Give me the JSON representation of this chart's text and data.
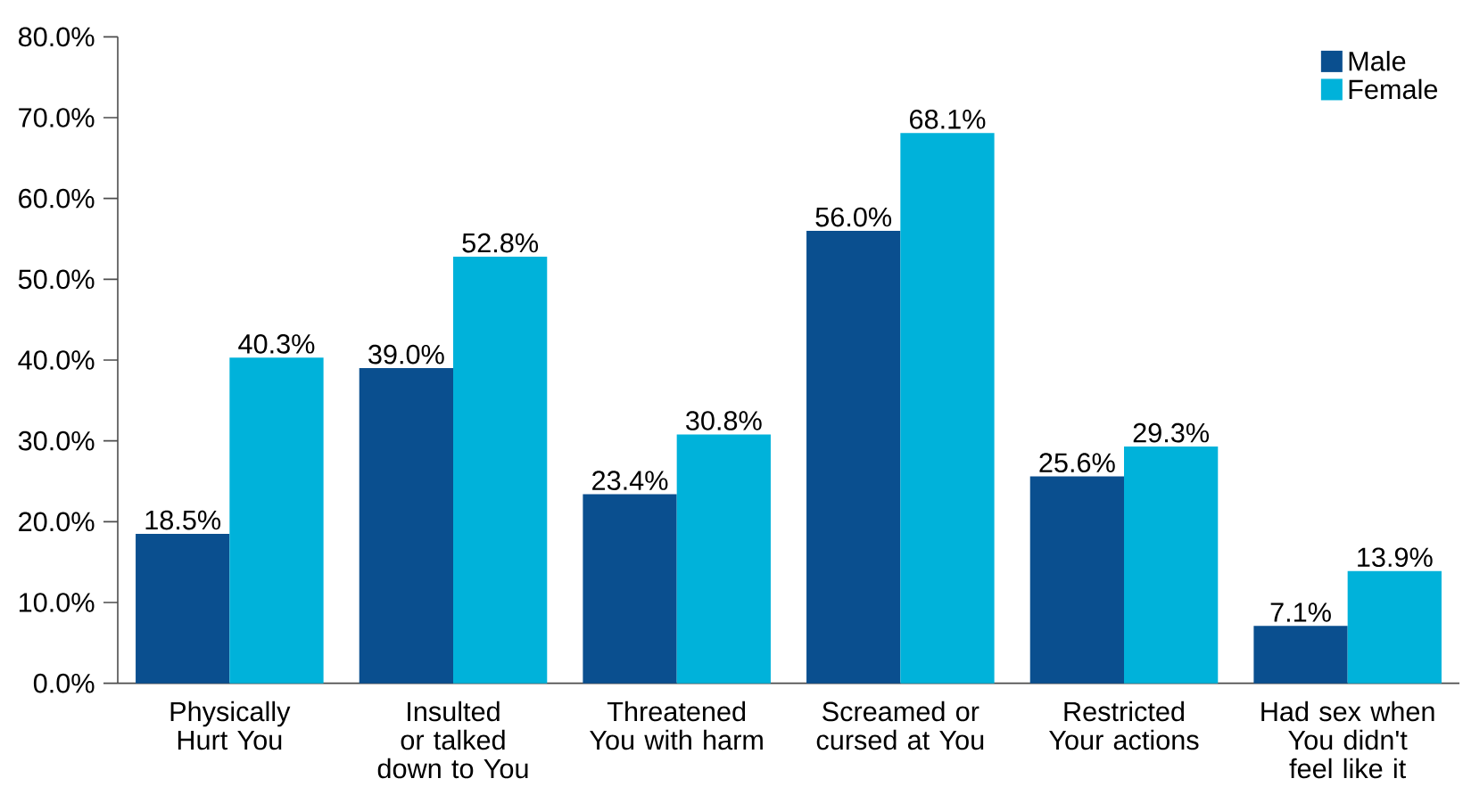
{
  "chart_data": {
    "type": "bar",
    "categories": [
      "Physically Hurt You",
      "Insulted or talked down to You",
      "Threatened You with harm",
      "Screamed or cursed at You",
      "Restricted Your actions",
      "Had sex when You didn't feel like it"
    ],
    "series": [
      {
        "name": "Male",
        "color": "#0a4f8f",
        "values": [
          18.5,
          39.0,
          23.4,
          56.0,
          25.6,
          7.1
        ],
        "value_labels": [
          "18.5%",
          "39.0%",
          "23.4%",
          "56.0%",
          "25.6%",
          "7.1%"
        ]
      },
      {
        "name": "Female",
        "color": "#00b2da",
        "values": [
          40.3,
          52.8,
          30.8,
          68.1,
          29.3,
          13.9
        ],
        "value_labels": [
          "40.3%",
          "52.8%",
          "30.8%",
          "68.1%",
          "29.3%",
          "13.9%"
        ]
      }
    ],
    "ylim": [
      0,
      80
    ],
    "yticks": [
      {
        "value": 0,
        "label": "0.0%"
      },
      {
        "value": 10,
        "label": "10.0%"
      },
      {
        "value": 20,
        "label": "20.0%"
      },
      {
        "value": 30,
        "label": "30.0%"
      },
      {
        "value": 40,
        "label": "40.0%"
      },
      {
        "value": 50,
        "label": "50.0%"
      },
      {
        "value": 60,
        "label": "60.0%"
      },
      {
        "value": 70,
        "label": "70.0%"
      },
      {
        "value": 80,
        "label": "80.0%"
      }
    ],
    "grid": false,
    "legend": "top right"
  }
}
